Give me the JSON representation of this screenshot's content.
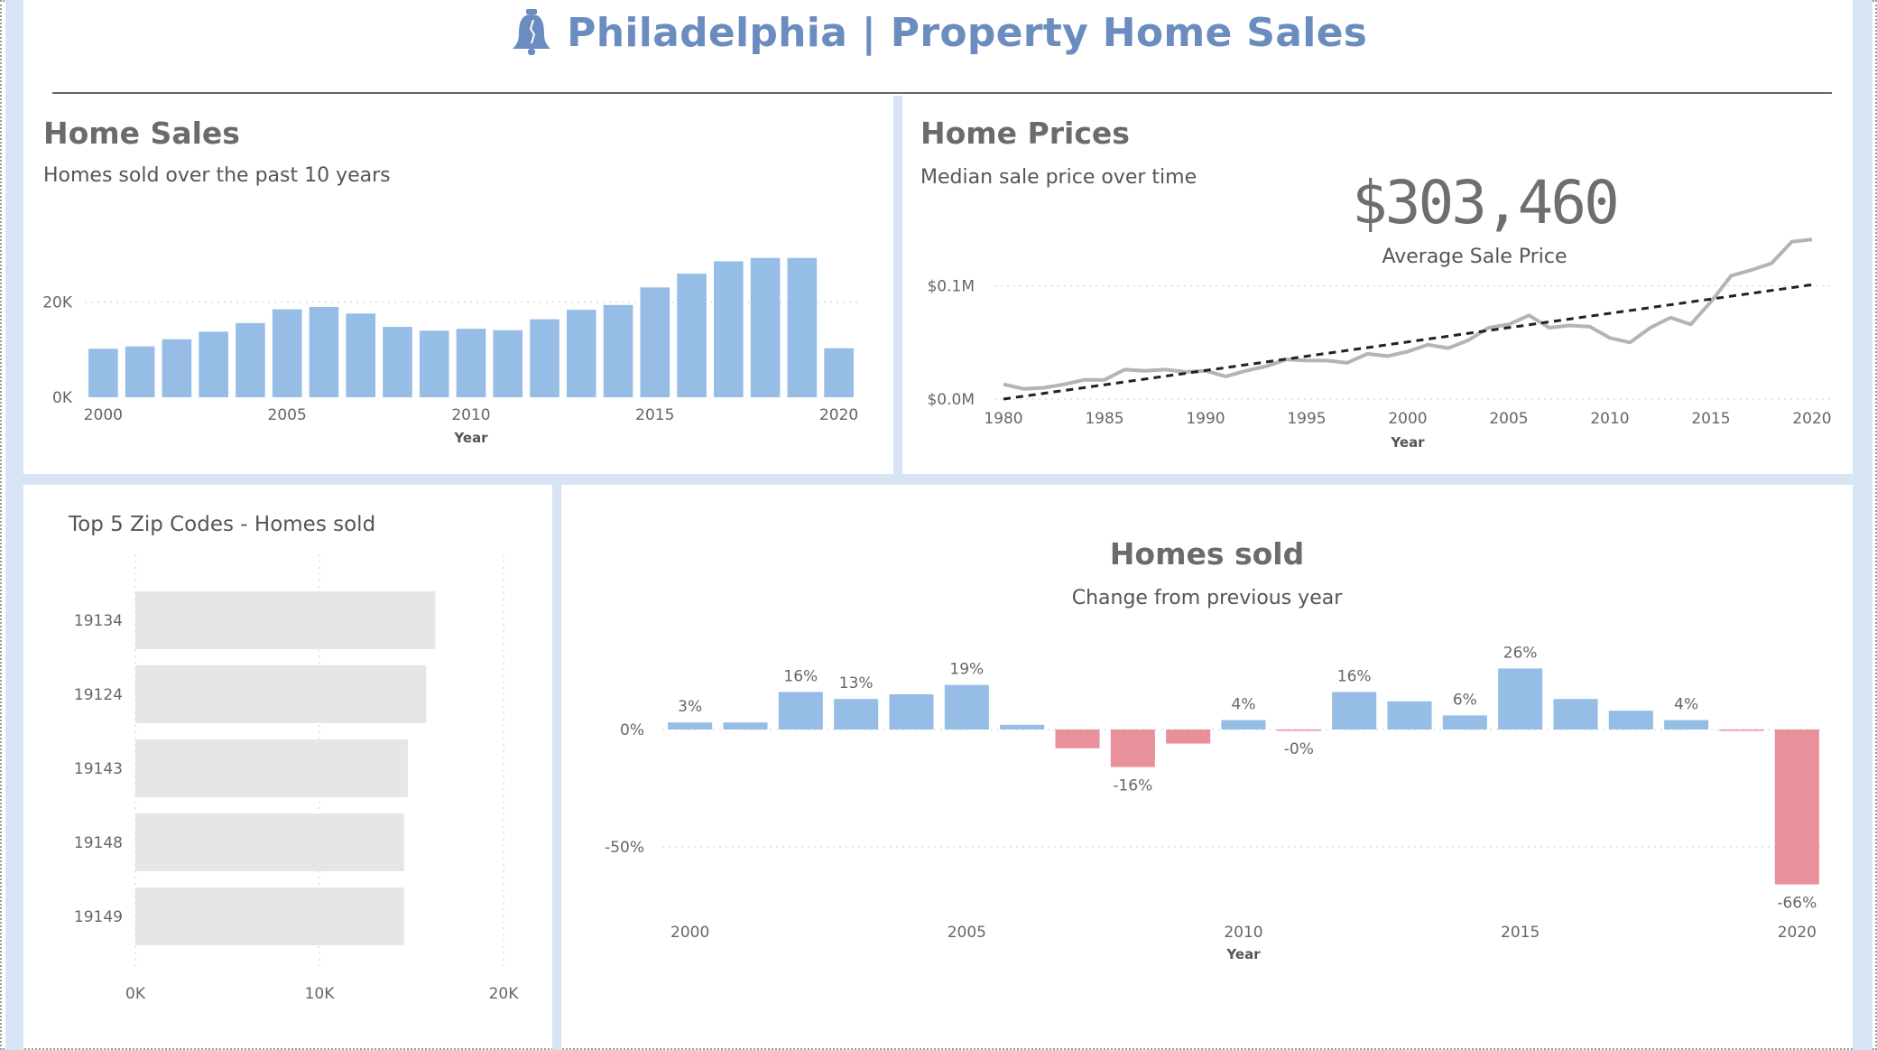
{
  "header": {
    "title": "Philadelphia | Property Home Sales",
    "icon": "liberty-bell-icon",
    "accent_color": "#6a8cbf"
  },
  "home_sales": {
    "title": "Home Sales",
    "subtitle": "Homes sold over the past 10 years"
  },
  "home_prices": {
    "title": "Home Prices",
    "subtitle": "Median sale price over time",
    "kpi_value": "$303,460",
    "kpi_label": "Average Sale Price"
  },
  "top_zip": {
    "title": "Top 5 Zip Codes - Homes sold"
  },
  "homes_change": {
    "title": "Homes sold",
    "subtitle": "Change from previous year"
  },
  "colors": {
    "bar_blue": "#95bde5",
    "bar_red": "#e8919a",
    "bar_gray": "#e6e6e6",
    "line_gray": "#b4b4b4",
    "trend_black": "#222222"
  },
  "chart_data": [
    {
      "id": "home-sales",
      "type": "bar",
      "xlabel": "Year",
      "ylabel": "",
      "x": [
        2000,
        2001,
        2002,
        2003,
        2004,
        2005,
        2006,
        2007,
        2008,
        2009,
        2010,
        2011,
        2012,
        2013,
        2014,
        2015,
        2016,
        2017,
        2018,
        2019,
        2020
      ],
      "values": [
        10200,
        10700,
        12200,
        13800,
        15600,
        18500,
        19000,
        17600,
        14800,
        14000,
        14400,
        14100,
        16400,
        18400,
        19400,
        23100,
        26000,
        28600,
        29300,
        29300,
        10300
      ],
      "ylim": [
        0,
        30000
      ],
      "yticks": [
        {
          "value": 0,
          "label": "0K"
        },
        {
          "value": 20000,
          "label": "20K"
        }
      ],
      "xticks": [
        {
          "value": 2000,
          "label": "2000"
        },
        {
          "value": 2005,
          "label": "2005"
        },
        {
          "value": 2010,
          "label": "2010"
        },
        {
          "value": 2015,
          "label": "2015"
        },
        {
          "value": 2020,
          "label": "2020"
        }
      ],
      "grid": "horizontal dotted"
    },
    {
      "id": "home-prices",
      "type": "line",
      "xlabel": "Year",
      "ylabel": "",
      "x": [
        1980,
        1981,
        1982,
        1983,
        1984,
        1985,
        1986,
        1987,
        1988,
        1989,
        1990,
        1991,
        1992,
        1993,
        1994,
        1995,
        1996,
        1997,
        1998,
        1999,
        2000,
        2001,
        2002,
        2003,
        2004,
        2005,
        2006,
        2007,
        2008,
        2009,
        2010,
        2011,
        2012,
        2013,
        2014,
        2015,
        2016,
        2017,
        2018,
        2019,
        2020
      ],
      "series": [
        {
          "values": [
            13000,
            9000,
            10000,
            13000,
            17000,
            17000,
            26000,
            25000,
            26000,
            24000,
            25000,
            20000,
            25000,
            29000,
            35000,
            34000,
            34000,
            32000,
            40000,
            38000,
            42000,
            48000,
            45000,
            52000,
            63000,
            66000,
            74000,
            63000,
            65000,
            64000,
            54000,
            50000,
            63000,
            72000,
            66000,
            86000,
            109000,
            114000,
            120000,
            139000,
            141000
          ]
        },
        {
          "name": "trend",
          "x": [
            1980,
            2020
          ],
          "values": [
            0,
            101000
          ],
          "style": "dashed"
        }
      ],
      "ylim": [
        0,
        150000
      ],
      "yticks": [
        {
          "value": 0,
          "label": "$0.0M"
        },
        {
          "value": 100000,
          "label": "$0.1M"
        }
      ],
      "xticks": [
        {
          "value": 1980,
          "label": "1980"
        },
        {
          "value": 1985,
          "label": "1985"
        },
        {
          "value": 1990,
          "label": "1990"
        },
        {
          "value": 1995,
          "label": "1995"
        },
        {
          "value": 2000,
          "label": "2000"
        },
        {
          "value": 2005,
          "label": "2005"
        },
        {
          "value": 2010,
          "label": "2010"
        },
        {
          "value": 2015,
          "label": "2015"
        },
        {
          "value": 2020,
          "label": "2020"
        }
      ],
      "grid": "horizontal dotted"
    },
    {
      "id": "top-zip",
      "type": "bar",
      "orientation": "horizontal",
      "categories": [
        "19134",
        "19124",
        "19143",
        "19148",
        "19149"
      ],
      "values": [
        16300,
        15800,
        14800,
        14600,
        14600
      ],
      "xlim": [
        0,
        20000
      ],
      "xticks": [
        {
          "value": 0,
          "label": "0K"
        },
        {
          "value": 10000,
          "label": "10K"
        },
        {
          "value": 20000,
          "label": "20K"
        }
      ],
      "grid": "vertical dotted"
    },
    {
      "id": "homes-change",
      "type": "bar",
      "xlabel": "Year",
      "ylabel": "",
      "x": [
        2000,
        2001,
        2002,
        2003,
        2004,
        2005,
        2006,
        2007,
        2008,
        2009,
        2010,
        2011,
        2012,
        2013,
        2014,
        2015,
        2016,
        2017,
        2018,
        2019,
        2020
      ],
      "values": [
        3,
        3,
        16,
        13,
        15,
        19,
        2,
        -8,
        -16,
        -6,
        4,
        -0.4,
        16,
        12,
        6,
        26,
        13,
        8,
        4,
        -0.4,
        -66
      ],
      "data_labels": [
        {
          "x": 2000,
          "label": "3%"
        },
        {
          "x": 2002,
          "label": "16%"
        },
        {
          "x": 2003,
          "label": "13%"
        },
        {
          "x": 2005,
          "label": "19%"
        },
        {
          "x": 2008,
          "label": "-16%"
        },
        {
          "x": 2010,
          "label": "4%"
        },
        {
          "x": 2011,
          "label": "-0%"
        },
        {
          "x": 2012,
          "label": "16%"
        },
        {
          "x": 2014,
          "label": "6%"
        },
        {
          "x": 2015,
          "label": "26%"
        },
        {
          "x": 2018,
          "label": "4%"
        },
        {
          "x": 2020,
          "label": "-66%"
        }
      ],
      "ylim": [
        -70,
        30
      ],
      "yticks": [
        {
          "value": 0,
          "label": "0%"
        },
        {
          "value": -50,
          "label": "-50%"
        }
      ],
      "xticks": [
        {
          "value": 2000,
          "label": "2000"
        },
        {
          "value": 2005,
          "label": "2005"
        },
        {
          "value": 2010,
          "label": "2010"
        },
        {
          "value": 2015,
          "label": "2015"
        },
        {
          "value": 2020,
          "label": "2020"
        }
      ],
      "grid": "horizontal dotted"
    }
  ]
}
